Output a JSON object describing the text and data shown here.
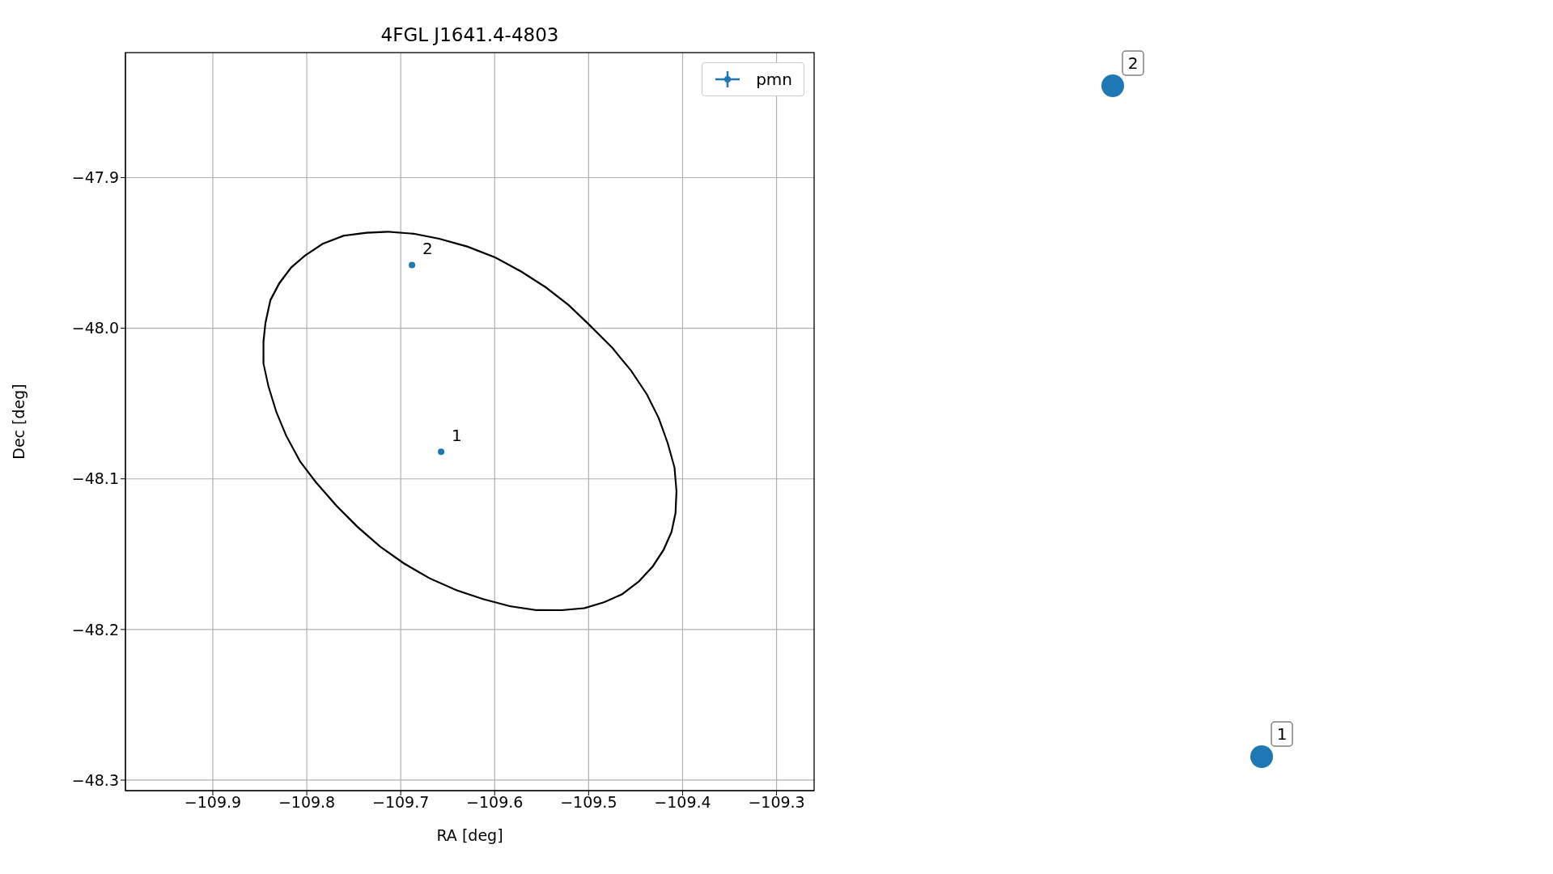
{
  "chart_data": [
    {
      "type": "scatter",
      "title": "4FGL J1641.4-4803",
      "xlabel": "RA [deg]",
      "ylabel": "Dec [deg]",
      "xlim": [
        -109.993,
        -109.26
      ],
      "ylim": [
        -48.307,
        -47.817
      ],
      "xticks": [
        -109.9,
        -109.8,
        -109.7,
        -109.6,
        -109.5,
        -109.4,
        -109.3
      ],
      "yticks": [
        -48.3,
        -48.2,
        -48.1,
        {
          "value": -48.0,
          "label": "−48.0"
        },
        -47.9
      ],
      "grid": true,
      "legend": "top right",
      "marker": "circle",
      "series": [
        {
          "name": "pmn",
          "type": "scatter",
          "color": "#1f77b4",
          "x": [
            -109.657,
            -109.688
          ],
          "values": [
            -48.082,
            -47.958
          ]
        }
      ],
      "annotations": [
        {
          "text": "1",
          "x": -109.657,
          "y": -48.082
        },
        {
          "text": "2",
          "x": -109.688,
          "y": -47.958
        }
      ]
    },
    {
      "type": "other",
      "annotations": [
        "2",
        "1"
      ]
    }
  ]
}
